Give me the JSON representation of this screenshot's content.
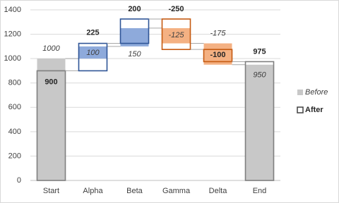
{
  "chart_data": {
    "type": "waterfall",
    "categories": [
      "Start",
      "Alpha",
      "Beta",
      "Gamma",
      "Delta",
      "End"
    ],
    "series": [
      {
        "name": "Before",
        "color": "#c8c8c8",
        "increase_color": "#8eaadb",
        "decrease_color": "#f4b183",
        "values": [
          1000,
          100,
          150,
          -125,
          -175,
          950
        ]
      },
      {
        "name": "After",
        "color": "#7f7f7f",
        "increase_color": "#2f5597",
        "decrease_color": "#c55a11",
        "values": [
          900,
          225,
          200,
          -250,
          -100,
          975
        ]
      }
    ],
    "ylim": [
      0,
      1400
    ],
    "yticks": [
      0,
      200,
      400,
      600,
      800,
      1000,
      1200,
      1400
    ],
    "grid": true,
    "legend": "right"
  }
}
